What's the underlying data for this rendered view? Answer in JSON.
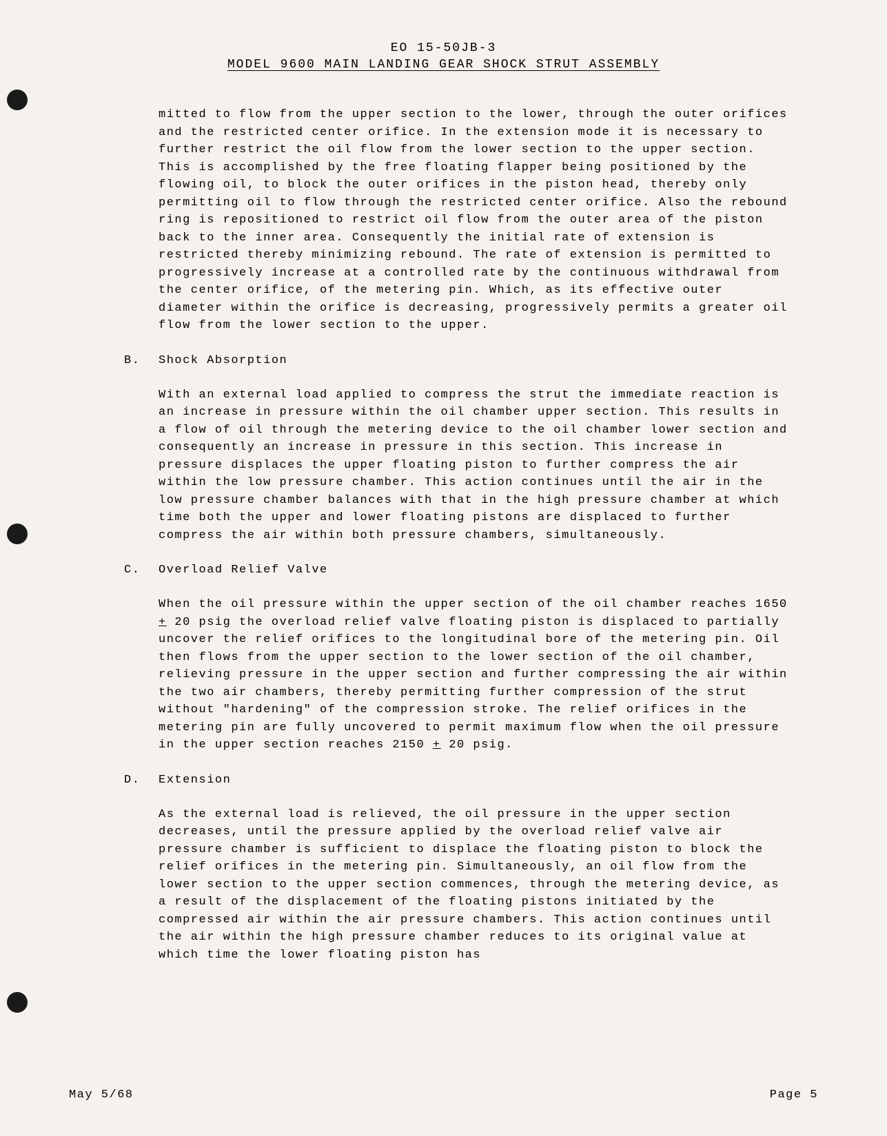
{
  "header": {
    "doc_number": "EO 15-50JB-3",
    "title": "MODEL 9600 MAIN LANDING GEAR SHOCK STRUT ASSEMBLY"
  },
  "paragraphs": {
    "intro": "mitted to flow from the upper section to the lower, through the outer orifices and the restricted center orifice.  In the extension mode it is necessary to further restrict the oil flow from the lower section to the upper section.  This is accomplished by the free floating flapper being positioned by the flowing oil, to block the outer orifices in the piston head, thereby only permitting oil to flow through the restricted center orifice.  Also the rebound ring is repositioned to restrict oil flow from the outer area of the piston back to the inner area.  Consequently the initial rate of extension is restricted thereby minimizing rebound.  The rate of extension is permitted to progressively increase at a controlled rate by the continuous withdrawal from the center orifice, of the metering pin.  Which, as its effective outer diameter within the orifice is decreasing, progressively permits a greater oil flow from the lower section to the upper."
  },
  "sections": {
    "b": {
      "letter": "B.",
      "title": "Shock Absorption",
      "body": "With an external load applied to compress the strut  the immediate reaction is an increase in pressure within the oil chamber upper section. This results in a flow of oil through the metering device to the oil chamber lower section and consequently an increase in pressure in this section.  This increase in pressure displaces the upper floating piston to further compress the air within the low pressure chamber.  This action continues until the air in the low pressure chamber balances with that in the high pressure chamber at which time both the upper and lower floating pistons are displaced to further compress the air within both pressure chambers, simultaneously."
    },
    "c": {
      "letter": "C.",
      "title": "Overload Relief Valve",
      "body_pre": "When the oil pressure within the upper section of the oil chamber reaches 1650 ",
      "body_mid1": " 20 psig the overload relief valve floating piston is displaced to partially uncover the relief orifices to the longitudinal bore of the metering pin.  Oil then flows from the upper section to the lower section of the oil chamber, relieving pressure in the upper section and further compressing the air within the two air chambers, thereby permitting further compression of the strut without \"hardening\" of the compression stroke.  The relief orifices in the metering pin are fully uncovered to permit maximum flow when the oil pressure in the upper section reaches 2150 ",
      "body_post": " 20 psig.",
      "plus_symbol": "+"
    },
    "d": {
      "letter": "D.",
      "title": "Extension",
      "body": "As the external load is relieved, the oil pressure in the upper section decreases, until the pressure applied by the overload relief valve air pressure chamber is sufficient to displace the floating piston to block the relief orifices in the metering pin.  Simultaneously, an oil flow from the lower section to the upper section commences, through the metering device, as a result of the displacement of the floating pistons initiated by the compressed air within the air pressure chambers.  This action continues until the air within the high pressure chamber reduces to its original value at which time the lower floating piston has"
    }
  },
  "footer": {
    "date": "May 5/68",
    "page": "Page 5"
  },
  "colors": {
    "background": "#faf8f3",
    "text": "#1a1a1a",
    "punch_hole": "#1a1a1a"
  },
  "typography": {
    "font_family": "Courier New",
    "body_fontsize": 17,
    "header_fontsize": 18,
    "letter_spacing": 1.5,
    "line_height": 1.5
  }
}
